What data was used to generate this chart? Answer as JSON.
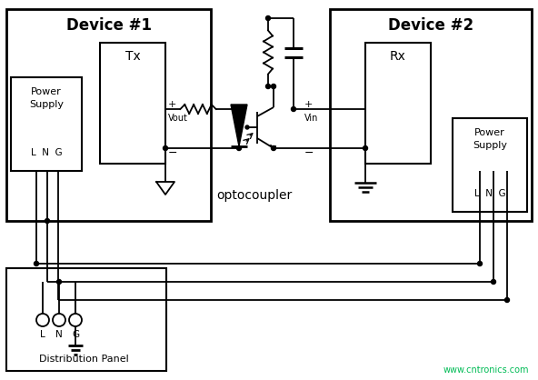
{
  "bg_color": "#ffffff",
  "line_color": "#000000",
  "watermark": "www.cntronics.com",
  "watermark_color": "#00bb55",
  "device1_label": "Device #1",
  "device2_label": "Device #2",
  "tx_label": "Tx",
  "rx_label": "Rx",
  "optocoupler_label": "optocoupler",
  "dist_label": "Distribution Panel",
  "vout_label": "Vout",
  "vin_label": "Vin"
}
